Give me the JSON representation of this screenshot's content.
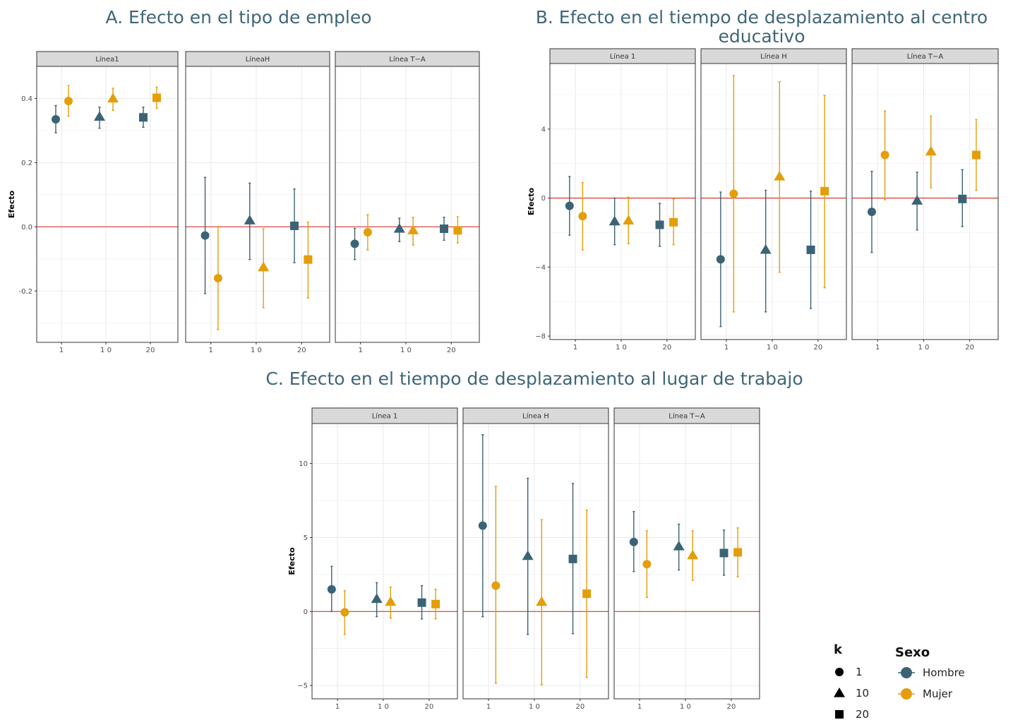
{
  "colors": {
    "hombre": "#3b6375",
    "mujer": "#e39e0a",
    "zero_line": "#d83a30",
    "strip_bg": "#d9d9d9",
    "grid": "#ebebeb"
  },
  "legend": {
    "k_title": "k",
    "k_items": [
      {
        "label": "1",
        "shape": "circle"
      },
      {
        "label": "10",
        "shape": "triangle"
      },
      {
        "label": "20",
        "shape": "square"
      }
    ],
    "sexo_title": "Sexo",
    "sexo_items": [
      {
        "label": "Hombre",
        "color": "#3b6375"
      },
      {
        "label": "Mujer",
        "color": "#e39e0a"
      }
    ]
  },
  "chart_data": [
    {
      "type": "scatter",
      "title": "A. Efecto en el tipo de empleo",
      "ylabel": "Efecto",
      "ylim": [
        -0.36,
        0.5
      ],
      "yticks": [
        -0.2,
        0.0,
        0.2,
        0.4
      ],
      "ytick_labels": [
        "-0.2",
        "0.0",
        "0.2",
        "0.4"
      ],
      "xtick_labels": [
        "1",
        "1 0",
        "20"
      ],
      "panels": [
        {
          "strip": "Línea1",
          "points": [
            {
              "k": "1",
              "sexo": "Hombre",
              "est": 0.335,
              "lo": 0.293,
              "hi": 0.378
            },
            {
              "k": "1",
              "sexo": "Mujer",
              "est": 0.392,
              "lo": 0.345,
              "hi": 0.44
            },
            {
              "k": "10",
              "sexo": "Hombre",
              "est": 0.343,
              "lo": 0.307,
              "hi": 0.373
            },
            {
              "k": "10",
              "sexo": "Mujer",
              "est": 0.4,
              "lo": 0.363,
              "hi": 0.432
            },
            {
              "k": "20",
              "sexo": "Hombre",
              "est": 0.341,
              "lo": 0.31,
              "hi": 0.373
            },
            {
              "k": "20",
              "sexo": "Mujer",
              "est": 0.402,
              "lo": 0.369,
              "hi": 0.435
            }
          ]
        },
        {
          "strip": "LíneaH",
          "points": [
            {
              "k": "1",
              "sexo": "Hombre",
              "est": -0.027,
              "lo": -0.208,
              "hi": 0.154
            },
            {
              "k": "1",
              "sexo": "Mujer",
              "est": -0.16,
              "lo": -0.32,
              "hi": 0.001
            },
            {
              "k": "10",
              "sexo": "Hombre",
              "est": 0.02,
              "lo": -0.102,
              "hi": 0.136
            },
            {
              "k": "10",
              "sexo": "Mujer",
              "est": -0.126,
              "lo": -0.252,
              "hi": -0.006
            },
            {
              "k": "20",
              "sexo": "Hombre",
              "est": 0.003,
              "lo": -0.112,
              "hi": 0.118
            },
            {
              "k": "20",
              "sexo": "Mujer",
              "est": -0.102,
              "lo": -0.222,
              "hi": 0.015
            }
          ]
        },
        {
          "strip": "Línea T−A",
          "points": [
            {
              "k": "1",
              "sexo": "Hombre",
              "est": -0.053,
              "lo": -0.102,
              "hi": -0.005
            },
            {
              "k": "1",
              "sexo": "Mujer",
              "est": -0.017,
              "lo": -0.072,
              "hi": 0.038
            },
            {
              "k": "10",
              "sexo": "Hombre",
              "est": -0.006,
              "lo": -0.046,
              "hi": 0.027
            },
            {
              "k": "10",
              "sexo": "Mujer",
              "est": -0.011,
              "lo": -0.057,
              "hi": 0.029
            },
            {
              "k": "20",
              "sexo": "Hombre",
              "est": -0.006,
              "lo": -0.042,
              "hi": 0.03
            },
            {
              "k": "20",
              "sexo": "Mujer",
              "est": -0.011,
              "lo": -0.05,
              "hi": 0.031
            }
          ]
        }
      ]
    },
    {
      "type": "scatter",
      "title": "B. Efecto en el tiempo de desplazamiento al centro educativo",
      "title_lines": [
        "B. Efecto en el tiempo de desplazamiento al centro",
        "educativo"
      ],
      "ylabel": "Efecto",
      "ylim": [
        -8.2,
        7.8
      ],
      "yticks": [
        -8,
        -4,
        0,
        4
      ],
      "ytick_labels": [
        "−8",
        "−4",
        "0",
        "4"
      ],
      "xtick_labels": [
        "1",
        "1 0",
        "20"
      ],
      "panels": [
        {
          "strip": "Línea 1",
          "points": [
            {
              "k": "1",
              "sexo": "Hombre",
              "est": -0.45,
              "lo": -2.15,
              "hi": 1.25
            },
            {
              "k": "1",
              "sexo": "Mujer",
              "est": -1.05,
              "lo": -3.0,
              "hi": 0.9
            },
            {
              "k": "10",
              "sexo": "Hombre",
              "est": -1.35,
              "lo": -2.7,
              "hi": 0.0
            },
            {
              "k": "10",
              "sexo": "Mujer",
              "est": -1.3,
              "lo": -2.65,
              "hi": 0.05
            },
            {
              "k": "20",
              "sexo": "Hombre",
              "est": -1.55,
              "lo": -2.8,
              "hi": -0.3
            },
            {
              "k": "20",
              "sexo": "Mujer",
              "est": -1.4,
              "lo": -2.7,
              "hi": -0.05
            }
          ]
        },
        {
          "strip": "Línea  H",
          "points": [
            {
              "k": "1",
              "sexo": "Hombre",
              "est": -3.55,
              "lo": -7.45,
              "hi": 0.35
            },
            {
              "k": "1",
              "sexo": "Mujer",
              "est": 0.25,
              "lo": -6.6,
              "hi": 7.1
            },
            {
              "k": "10",
              "sexo": "Hombre",
              "est": -3.0,
              "lo": -6.6,
              "hi": 0.45
            },
            {
              "k": "10",
              "sexo": "Mujer",
              "est": 1.25,
              "lo": -4.3,
              "hi": 6.75
            },
            {
              "k": "20",
              "sexo": "Hombre",
              "est": -3.0,
              "lo": -6.4,
              "hi": 0.4
            },
            {
              "k": "20",
              "sexo": "Mujer",
              "est": 0.4,
              "lo": -5.2,
              "hi": 5.95
            }
          ]
        },
        {
          "strip": "Línea T−A",
          "points": [
            {
              "k": "1",
              "sexo": "Hombre",
              "est": -0.8,
              "lo": -3.15,
              "hi": 1.55
            },
            {
              "k": "1",
              "sexo": "Mujer",
              "est": 2.5,
              "lo": -0.1,
              "hi": 5.05
            },
            {
              "k": "10",
              "sexo": "Hombre",
              "est": -0.15,
              "lo": -1.85,
              "hi": 1.5
            },
            {
              "k": "10",
              "sexo": "Mujer",
              "est": 2.7,
              "lo": 0.6,
              "hi": 4.75
            },
            {
              "k": "20",
              "sexo": "Hombre",
              "est": -0.05,
              "lo": -1.65,
              "hi": 1.65
            },
            {
              "k": "20",
              "sexo": "Mujer",
              "est": 2.5,
              "lo": 0.45,
              "hi": 4.55
            }
          ]
        }
      ]
    },
    {
      "type": "scatter",
      "title": "C. Efecto en el tiempo de desplazamiento al lugar de trabajo",
      "ylabel": "Efecto",
      "ylim": [
        -5.9,
        12.7
      ],
      "yticks": [
        -5,
        0,
        5,
        10
      ],
      "ytick_labels": [
        "−5",
        "0",
        "5",
        "10"
      ],
      "xtick_labels": [
        "1",
        "1 0",
        "20"
      ],
      "panels": [
        {
          "strip": "Línea 1",
          "points": [
            {
              "k": "1",
              "sexo": "Hombre",
              "est": 1.5,
              "lo": 0.0,
              "hi": 3.05
            },
            {
              "k": "1",
              "sexo": "Mujer",
              "est": -0.05,
              "lo": -1.55,
              "hi": 1.4
            },
            {
              "k": "10",
              "sexo": "Hombre",
              "est": 0.85,
              "lo": -0.35,
              "hi": 1.95
            },
            {
              "k": "10",
              "sexo": "Mujer",
              "est": 0.65,
              "lo": -0.45,
              "hi": 1.65
            },
            {
              "k": "20",
              "sexo": "Hombre",
              "est": 0.6,
              "lo": -0.5,
              "hi": 1.75
            },
            {
              "k": "20",
              "sexo": "Mujer",
              "est": 0.5,
              "lo": -0.5,
              "hi": 1.5
            }
          ]
        },
        {
          "strip": "Línea H",
          "points": [
            {
              "k": "1",
              "sexo": "Hombre",
              "est": 5.8,
              "lo": -0.35,
              "hi": 11.95
            },
            {
              "k": "1",
              "sexo": "Mujer",
              "est": 1.75,
              "lo": -4.85,
              "hi": 8.45
            },
            {
              "k": "10",
              "sexo": "Hombre",
              "est": 3.75,
              "lo": -1.55,
              "hi": 9.0
            },
            {
              "k": "10",
              "sexo": "Mujer",
              "est": 0.65,
              "lo": -4.95,
              "hi": 6.2
            },
            {
              "k": "20",
              "sexo": "Hombre",
              "est": 3.55,
              "lo": -1.5,
              "hi": 8.65
            },
            {
              "k": "20",
              "sexo": "Mujer",
              "est": 1.2,
              "lo": -4.45,
              "hi": 6.85
            }
          ]
        },
        {
          "strip": "Línea T−A",
          "points": [
            {
              "k": "1",
              "sexo": "Hombre",
              "est": 4.7,
              "lo": 2.7,
              "hi": 6.75
            },
            {
              "k": "1",
              "sexo": "Mujer",
              "est": 3.2,
              "lo": 0.95,
              "hi": 5.45
            },
            {
              "k": "10",
              "sexo": "Hombre",
              "est": 4.4,
              "lo": 2.8,
              "hi": 5.9
            },
            {
              "k": "10",
              "sexo": "Mujer",
              "est": 3.8,
              "lo": 2.1,
              "hi": 5.45
            },
            {
              "k": "20",
              "sexo": "Hombre",
              "est": 3.95,
              "lo": 2.45,
              "hi": 5.5
            },
            {
              "k": "20",
              "sexo": "Mujer",
              "est": 4.0,
              "lo": 2.35,
              "hi": 5.65
            }
          ]
        }
      ]
    }
  ]
}
